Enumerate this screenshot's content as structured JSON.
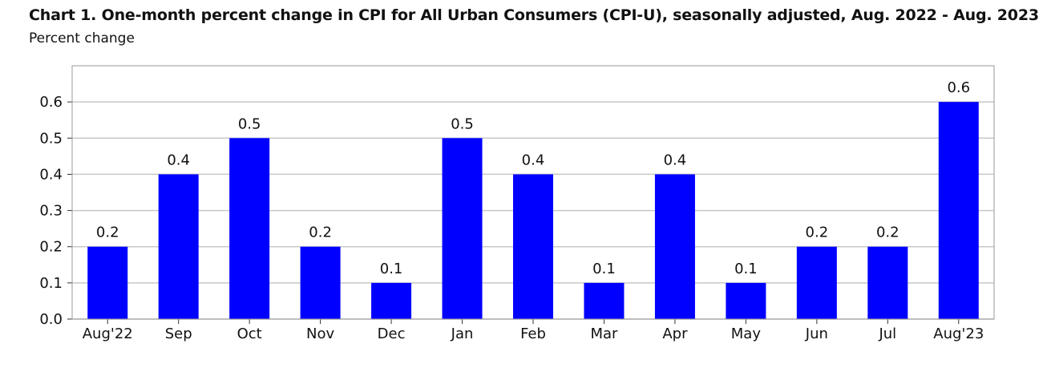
{
  "chart_data": {
    "type": "bar",
    "title": "Chart 1. One-month percent change in CPI for All Urban Consumers (CPI-U), seasonally adjusted, Aug. 2022 - Aug. 2023",
    "ylabel": "Percent change",
    "xlabel": "",
    "categories": [
      "Aug'22",
      "Sep",
      "Oct",
      "Nov",
      "Dec",
      "Jan",
      "Feb",
      "Mar",
      "Apr",
      "May",
      "Jun",
      "Jul",
      "Aug'23"
    ],
    "values": [
      0.2,
      0.4,
      0.5,
      0.2,
      0.1,
      0.5,
      0.4,
      0.1,
      0.4,
      0.1,
      0.2,
      0.2,
      0.6
    ],
    "ylim": [
      0,
      0.7
    ],
    "yticks": [
      "0.0",
      "0.1",
      "0.2",
      "0.3",
      "0.4",
      "0.5",
      "0.6"
    ],
    "grid": true,
    "bar_color": "#0000ff",
    "grid_color": "#c8c8c8"
  }
}
